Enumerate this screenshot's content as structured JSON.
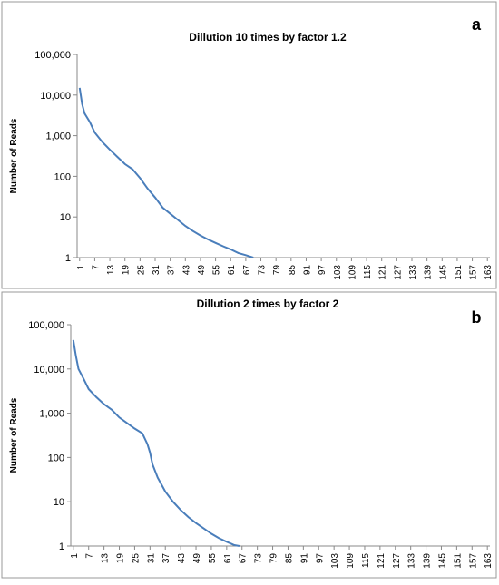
{
  "chart_data": [
    {
      "type": "line",
      "panel_label": "a",
      "title": "Dillution 10 times by factor 1.2",
      "y_label": "Number of Reads",
      "log_scale": true,
      "grid": false,
      "xlim": [
        0,
        164
      ],
      "xticks": [
        1,
        7,
        13,
        19,
        25,
        31,
        37,
        43,
        49,
        55,
        61,
        67,
        73,
        79,
        85,
        91,
        97,
        103,
        109,
        115,
        121,
        127,
        133,
        139,
        145,
        151,
        157,
        163
      ],
      "ylim": [
        1,
        100000
      ],
      "yticks": [
        1,
        10,
        100,
        {
          "value": 1000,
          "label": "1,000"
        },
        {
          "value": 10000,
          "label": "10,000"
        },
        {
          "value": 100000,
          "label": "100,000"
        }
      ],
      "x": [
        1,
        2,
        3,
        5,
        7,
        10,
        13,
        16,
        19,
        22,
        25,
        28,
        31,
        34,
        37,
        40,
        43,
        46,
        49,
        52,
        55,
        58,
        61,
        64,
        67,
        70
      ],
      "series": [
        {
          "color": "#4a7ebb",
          "values": [
            15000,
            6000,
            3500,
            2200,
            1200,
            700,
            450,
            300,
            200,
            150,
            90,
            50,
            30,
            17,
            12,
            8.5,
            6,
            4.5,
            3.5,
            2.8,
            2.3,
            1.9,
            1.6,
            1.3,
            1.15,
            1
          ]
        }
      ]
    },
    {
      "type": "line",
      "panel_label": "b",
      "title": "Dillution 2 times by factor  2",
      "y_label": "Number of Reads",
      "log_scale": true,
      "grid": false,
      "xlim": [
        0,
        164
      ],
      "xticks": [
        1,
        7,
        13,
        19,
        25,
        31,
        37,
        43,
        49,
        55,
        61,
        67,
        73,
        79,
        85,
        91,
        97,
        103,
        109,
        115,
        121,
        127,
        133,
        139,
        145,
        151,
        157,
        163
      ],
      "ylim": [
        1,
        100000
      ],
      "yticks": [
        1,
        10,
        100,
        {
          "value": 1000,
          "label": "1,000"
        },
        {
          "value": 10000,
          "label": "10,000"
        },
        {
          "value": 100000,
          "label": "100,000"
        }
      ],
      "x": [
        1,
        2,
        3,
        5,
        7,
        10,
        13,
        16,
        19,
        22,
        25,
        28,
        30,
        31,
        32,
        34,
        37,
        40,
        43,
        46,
        49,
        52,
        55,
        58,
        61,
        64,
        66
      ],
      "series": [
        {
          "color": "#4a7ebb",
          "values": [
            45000,
            20000,
            10000,
            6000,
            3500,
            2300,
            1600,
            1200,
            800,
            600,
            450,
            350,
            200,
            130,
            70,
            35,
            17,
            10,
            6.5,
            4.5,
            3.3,
            2.5,
            1.9,
            1.5,
            1.25,
            1.05,
            1
          ]
        }
      ]
    }
  ]
}
